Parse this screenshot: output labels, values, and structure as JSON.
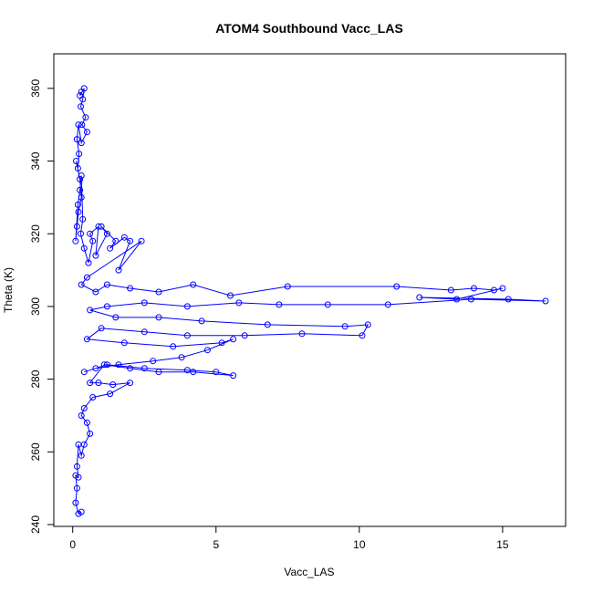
{
  "chart_data": {
    "type": "scatter",
    "title": "ATOM4 Southbound Vacc_LAS",
    "xlabel": "Vacc_LAS",
    "ylabel": "Theta (K)",
    "xlim": [
      -0.66,
      17.2
    ],
    "ylim": [
      239.5,
      369.5
    ],
    "xticks": [
      0,
      5,
      10,
      15
    ],
    "yticks": [
      240,
      260,
      280,
      300,
      320,
      340,
      360
    ],
    "xtick_labels": [
      "0",
      "5",
      "10",
      "15"
    ],
    "ytick_labels": [
      "240",
      "260",
      "280",
      "300",
      "320",
      "340",
      "360"
    ],
    "grid": false,
    "legend": "none",
    "marker": "open-circle",
    "connected": true,
    "color": "#0000ff",
    "series": [
      {
        "x": [
          0.3,
          0.25,
          0.4,
          0.35,
          0.28,
          0.45,
          0.32,
          0.5,
          0.3,
          0.2,
          0.15,
          0.22,
          0.18,
          0.12,
          0.25,
          0.3,
          0.2,
          0.15,
          0.1,
          0.18,
          0.25,
          0.3,
          0.35,
          0.28,
          0.4,
          0.55,
          0.7,
          0.6,
          0.9,
          0.8,
          1.2,
          1.0,
          1.5,
          1.3,
          1.8,
          2.0,
          1.6,
          2.4,
          0.5,
          0.3,
          0.8,
          1.2,
          2.0,
          3.0,
          4.2,
          5.5,
          7.5,
          11.3,
          13.2,
          14.0,
          14.7,
          15.0,
          13.4,
          12.1,
          15.2,
          16.5,
          13.9,
          11.0,
          8.9,
          7.2,
          5.8,
          4.0,
          2.5,
          1.2,
          0.6,
          1.5,
          3.0,
          4.5,
          6.8,
          9.5,
          10.3,
          10.1,
          8.0,
          6.0,
          4.0,
          2.5,
          1.0,
          0.5,
          1.8,
          3.5,
          5.2,
          5.6,
          4.7,
          3.8,
          2.8,
          1.6,
          0.8,
          0.4,
          1.2,
          2.5,
          4.0,
          5.0,
          5.6,
          4.2,
          3.0,
          2.0,
          1.1,
          0.6,
          0.9,
          1.4,
          2.0,
          1.3,
          0.7,
          0.4,
          0.3,
          0.5,
          0.6,
          0.4,
          0.3,
          0.2,
          0.15,
          0.2,
          0.1,
          0.15,
          0.1,
          0.2,
          0.3
        ],
        "y": [
          359.0,
          358.0,
          360.0,
          357.0,
          355.0,
          352.0,
          350.0,
          348.0,
          345.0,
          350.0,
          346.0,
          342.0,
          338.0,
          340.0,
          335.0,
          330.0,
          326.0,
          322.0,
          318.0,
          328.0,
          332.0,
          336.0,
          324.0,
          320.0,
          316.0,
          312.0,
          318.0,
          320.0,
          322.0,
          314.0,
          320.0,
          322.0,
          318.0,
          316.0,
          319.0,
          318.0,
          310.0,
          318.0,
          308.0,
          306.0,
          304.0,
          306.0,
          305.0,
          304.0,
          306.0,
          303.0,
          305.5,
          305.5,
          304.5,
          305.0,
          304.5,
          305.0,
          302.0,
          302.5,
          302.0,
          301.5,
          302.0,
          300.5,
          300.5,
          300.5,
          301.0,
          300.0,
          301.0,
          300.0,
          299.0,
          297.0,
          297.0,
          296.0,
          295.0,
          294.5,
          295.0,
          292.0,
          292.5,
          292.0,
          292.0,
          293.0,
          294.0,
          291.0,
          290.0,
          289.0,
          290.0,
          291.0,
          288.0,
          286.0,
          285.0,
          284.0,
          283.0,
          282.0,
          284.0,
          283.0,
          282.5,
          282.0,
          281.0,
          282.0,
          282.0,
          283.0,
          284.0,
          279.0,
          279.0,
          278.5,
          279.0,
          276.0,
          275.0,
          272.0,
          270.0,
          268.0,
          265.0,
          262.0,
          259.0,
          262.0,
          256.0,
          253.0,
          253.5,
          250.0,
          246.0,
          243.0,
          243.5
        ]
      }
    ]
  }
}
